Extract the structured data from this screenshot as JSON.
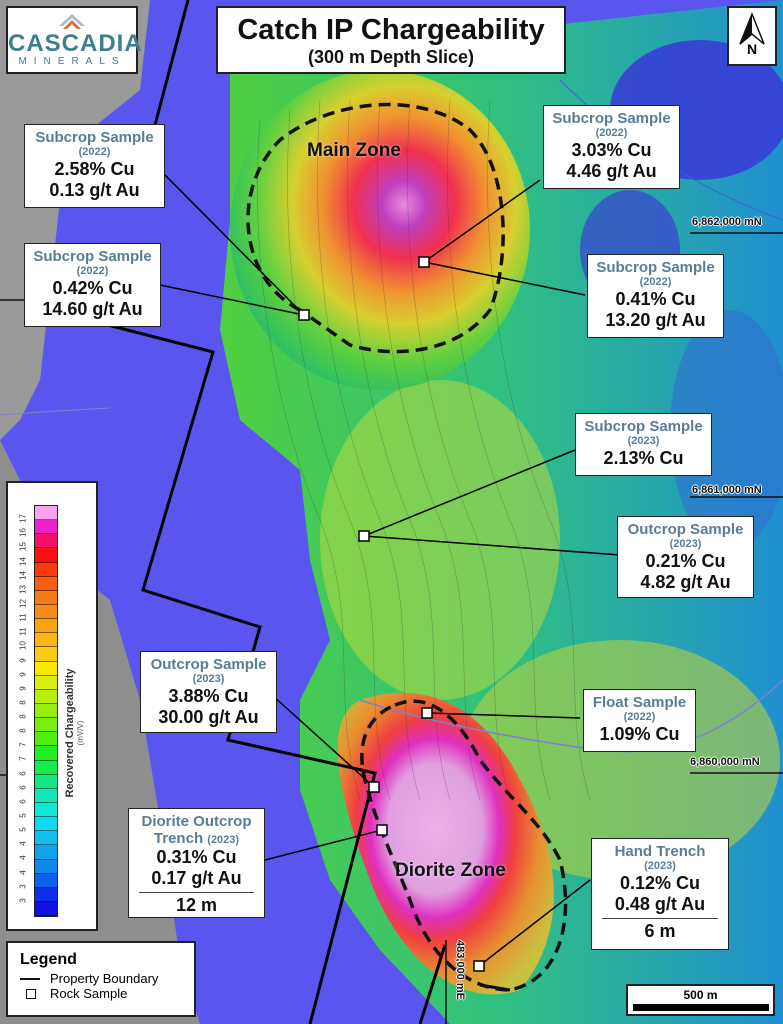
{
  "title": {
    "main": "Catch IP Chargeability",
    "sub": "(300 m Depth Slice)"
  },
  "logo": {
    "name": "CASCADIA",
    "sub": "MINERALS"
  },
  "north_arrow": {
    "label": "N"
  },
  "zones": [
    {
      "label": "Main Zone"
    },
    {
      "label": "Diorite Zone"
    }
  ],
  "grid_labels": {
    "northing_1": "6,862,000 mN",
    "northing_2": "6,861,000 mN",
    "northing_3": "6,860,000 mN",
    "easting_1": "483,000 mE"
  },
  "samples": [
    {
      "type": "Subcrop Sample",
      "year": "(2022)",
      "cu": "2.58% Cu",
      "au": "0.13 g/t Au"
    },
    {
      "type": "Subcrop Sample",
      "year": "(2022)",
      "cu": "0.42% Cu",
      "au": "14.60 g/t Au"
    },
    {
      "type": "Subcrop Sample",
      "year": "(2022)",
      "cu": "3.03% Cu",
      "au": "4.46 g/t Au"
    },
    {
      "type": "Subcrop Sample",
      "year": "(2022)",
      "cu": "0.41% Cu",
      "au": "13.20 g/t Au"
    },
    {
      "type": "Subcrop Sample",
      "year": "(2023)",
      "cu": "2.13% Cu"
    },
    {
      "type": "Outcrop Sample",
      "year": "(2023)",
      "cu": "0.21% Cu",
      "au": "4.82 g/t Au"
    },
    {
      "type": "Outcrop Sample",
      "year": "(2023)",
      "cu": "3.88% Cu",
      "au": "30.00 g/t Au"
    },
    {
      "type": "Float Sample",
      "year": "(2022)",
      "cu": "1.09% Cu"
    },
    {
      "type_line1": "Diorite Outcrop",
      "type_line2": "Trench",
      "year": "(2023)",
      "cu": "0.31% Cu",
      "au": "0.17 g/t Au",
      "length": "12 m"
    },
    {
      "type": "Hand Trench",
      "year": "(2023)",
      "cu": "0.12% Cu",
      "au": "0.48 g/t Au",
      "length": "6 m"
    }
  ],
  "colorbar": {
    "title": "Recovered Chargeability",
    "units": "(mV/V)",
    "ticks": [
      "17",
      "16",
      "15",
      "14",
      "14",
      "13",
      "12",
      "11",
      "11",
      "10",
      "9",
      "9",
      "9",
      "8",
      "8",
      "8",
      "7",
      "7",
      "6",
      "6",
      "6",
      "5",
      "5",
      "4",
      "4",
      "4",
      "3",
      "3"
    ],
    "colors": [
      "#f9a4f2",
      "#ee22cc",
      "#f5106a",
      "#fa1010",
      "#fa3a10",
      "#f86010",
      "#f87a10",
      "#f88c10",
      "#f8a410",
      "#f8b810",
      "#f8cc10",
      "#f8e800",
      "#d8ee10",
      "#b8ee10",
      "#98ee10",
      "#78ee10",
      "#50ee10",
      "#20ee20",
      "#10ee50",
      "#10e888",
      "#10e8b8",
      "#10e8d8",
      "#10d8f0",
      "#10c0f0",
      "#10a4f0",
      "#1088f0",
      "#1060f0",
      "#1030e8",
      "#1010e0"
    ]
  },
  "legend": {
    "title": "Legend",
    "items": [
      {
        "symbol": "line",
        "label": "Property Boundary"
      },
      {
        "symbol": "square",
        "label": "Rock Sample"
      }
    ]
  },
  "scale_bar": {
    "label": "500 m"
  },
  "colors": {
    "background_blue": "#5a55ee",
    "callout_title": "#5a7d96",
    "logo": "#3e7f8e"
  }
}
